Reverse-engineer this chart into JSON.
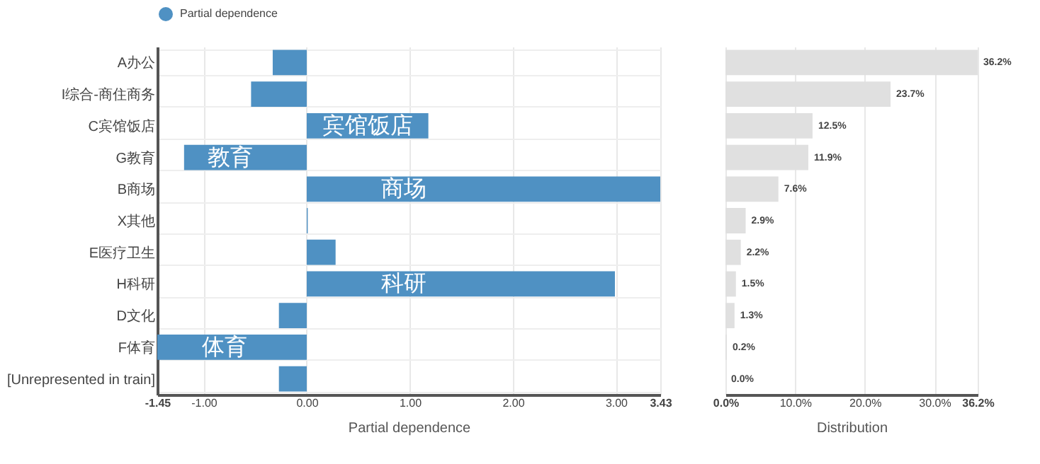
{
  "chart_data": [
    {
      "type": "bar",
      "orientation": "horizontal",
      "categories": [
        "A办公",
        "I综合-商住商务",
        "C宾馆饭店",
        "G教育",
        "B商场",
        "X其他",
        "E医疗卫生",
        "H科研",
        "D文化",
        "F体育",
        "[Unrepresented in train]"
      ],
      "series": [
        {
          "name": "Partial dependence",
          "color": "#4f91c3",
          "values": [
            -0.33,
            -0.54,
            1.18,
            -1.19,
            3.43,
            0.01,
            0.28,
            2.99,
            -0.27,
            -1.45,
            -0.27
          ]
        }
      ],
      "xlim": [
        -1.45,
        3.43
      ],
      "xticks": [
        -1.45,
        {
          "value": -1,
          "label": "-1.00"
        },
        {
          "value": 0,
          "label": "0.00"
        },
        {
          "value": 1,
          "label": "1.00"
        },
        {
          "value": 2,
          "label": "2.00"
        },
        {
          "value": 3,
          "label": "3.00"
        },
        3.43
      ],
      "xlabel": "Partial dependence",
      "grid": true,
      "legend": "top",
      "annotations": [
        {
          "text": "宾馆饭店",
          "x": 0.59,
          "y": "C宾馆饭店"
        },
        {
          "text": "教育",
          "x": -0.74,
          "y": "G教育"
        },
        {
          "text": "商场",
          "x": 0.94,
          "y": "B商场"
        },
        {
          "text": "科研",
          "x": 0.94,
          "y": "H科研"
        },
        {
          "text": "体育",
          "x": -0.8,
          "y": "F体育"
        }
      ]
    },
    {
      "type": "bar",
      "orientation": "horizontal",
      "categories": [
        "A办公",
        "I综合-商住商务",
        "C宾馆饭店",
        "G教育",
        "B商场",
        "X其他",
        "E医疗卫生",
        "H科研",
        "D文化",
        "F体育",
        "[Unrepresented in train]"
      ],
      "values": [
        36.2,
        23.7,
        12.5,
        11.9,
        7.6,
        2.9,
        2.2,
        1.5,
        1.3,
        0.2,
        0.0
      ],
      "color": "#e0e0e0",
      "value_labels": [
        "36.2%",
        "23.7%",
        "12.5%",
        "11.9%",
        "7.6%",
        "2.9%",
        "2.2%",
        "1.5%",
        "1.3%",
        "0.2%",
        "0.0%"
      ],
      "xlim": [
        0,
        36.2
      ],
      "xticks": [
        {
          "value": 0,
          "label": "0.0%"
        },
        {
          "value": 10,
          "label": "10.0%"
        },
        {
          "value": 20,
          "label": "20.0%"
        },
        {
          "value": 30,
          "label": "30.0%"
        },
        {
          "value": 36.2,
          "label": "36.2%"
        }
      ],
      "xlabel": "Distribution",
      "grid": "x",
      "tick_labels": "x"
    }
  ]
}
